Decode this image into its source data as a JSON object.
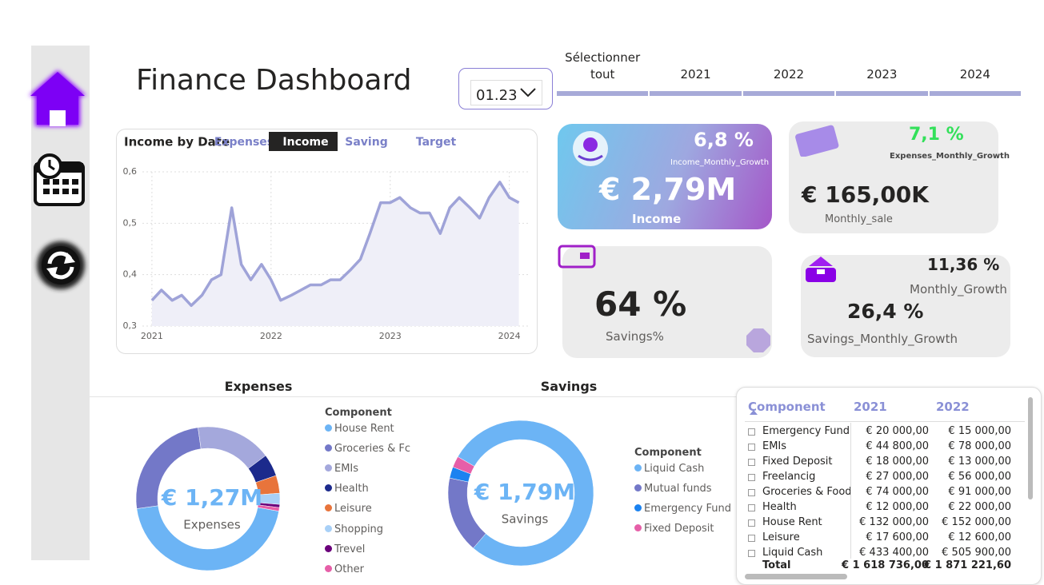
{
  "header": {
    "title": "Finance Dashboard",
    "date_dropdown": "01.23",
    "year_slicer": [
      "Sélectionner tout",
      "2021",
      "2022",
      "2023",
      "2024"
    ]
  },
  "kpis": {
    "income": {
      "growth": "6,8 %",
      "growth_label": "Income_Monthly_Growth",
      "value": "€ 2,79M",
      "label": "Income"
    },
    "expenses": {
      "growth": "7,1 %",
      "growth_label": "Expenses_Monthly_Growth",
      "value": "€ 165,00K",
      "label": "Monthly_sale"
    },
    "savings": {
      "value": "64 %",
      "label": "Savings%"
    },
    "savings_growth": {
      "growth": "11,36 %",
      "growth_label": "Monthly_Growth",
      "value": "26,4 %",
      "label": "Savings_Monthly_Growth"
    }
  },
  "chart_data": [
    {
      "type": "line",
      "title": "Income by Date",
      "tabs": [
        "Expenses",
        "Income",
        "Saving",
        "Target"
      ],
      "active_tab": 1,
      "x": [
        2021,
        2021.08,
        2021.17,
        2021.25,
        2021.33,
        2021.42,
        2021.5,
        2021.58,
        2021.67,
        2021.75,
        2021.83,
        2021.92,
        2022,
        2022.08,
        2022.17,
        2022.25,
        2022.33,
        2022.42,
        2022.5,
        2022.58,
        2022.67,
        2022.75,
        2022.83,
        2022.92,
        2023,
        2023.08,
        2023.17,
        2023.25,
        2023.33,
        2023.42,
        2023.5,
        2023.58,
        2023.67,
        2023.75,
        2023.83,
        2023.92,
        2024,
        2024.08
      ],
      "values": [
        0.35,
        0.37,
        0.35,
        0.36,
        0.34,
        0.36,
        0.39,
        0.4,
        0.53,
        0.42,
        0.39,
        0.42,
        0.39,
        0.35,
        0.36,
        0.37,
        0.38,
        0.38,
        0.39,
        0.39,
        0.41,
        0.43,
        0.48,
        0.54,
        0.54,
        0.55,
        0.53,
        0.52,
        0.52,
        0.48,
        0.53,
        0.55,
        0.53,
        0.51,
        0.55,
        0.58,
        0.55,
        0.54
      ],
      "color": "#9fa3d8",
      "area_color": "#efeff8",
      "xlim": [
        2020.92,
        2024.17
      ],
      "xticks": [
        2021,
        2022,
        2023,
        2024
      ],
      "ylim": [
        0.3,
        0.6
      ],
      "yticks": [
        {
          "value": 0.3,
          "label": "0,3"
        },
        {
          "value": 0.4,
          "label": "0,4"
        },
        {
          "value": 0.5,
          "label": "0,5"
        },
        {
          "value": 0.6,
          "label": "0,6"
        }
      ],
      "grid": true
    },
    {
      "type": "donut",
      "title": "Expenses",
      "center_value": "€ 1,27M",
      "center_label": "Expenses",
      "legend_title": "Component",
      "categories": [
        "House Rent",
        "Groceries & Fc",
        "EMIs",
        "Health",
        "Leisure",
        "Shopping",
        "Trevel",
        "Other"
      ],
      "values": [
        45,
        25,
        17,
        5,
        4,
        2.5,
        0.7,
        0.8
      ],
      "colors": [
        "#6cb4f5",
        "#7378c8",
        "#a4a8dc",
        "#1c2a8c",
        "#e8743b",
        "#a8d0f7",
        "#6b007b",
        "#e65fa8"
      ]
    },
    {
      "type": "donut",
      "title": "Savings",
      "center_value": "€ 1,79M",
      "center_label": "Savings",
      "legend_title": "Component",
      "categories": [
        "Liquid Cash",
        "Mutual funds",
        "Emergency Fund",
        "Fixed Deposit"
      ],
      "values": [
        78,
        17,
        2.5,
        2.5
      ],
      "colors": [
        "#6cb4f5",
        "#7378c8",
        "#1b82f0",
        "#e65fa8"
      ]
    }
  ],
  "table": {
    "columns": [
      "Component",
      "2021",
      "2022"
    ],
    "rows": [
      [
        "Emergency Fund",
        "€ 20 000,00",
        "€ 15 000,00"
      ],
      [
        "EMIs",
        "€ 44 800,00",
        "€ 78 000,00"
      ],
      [
        "Fixed Deposit",
        "€ 18 000,00",
        "€ 13 000,00"
      ],
      [
        "Freelancig",
        "€ 27 000,00",
        "€ 56 000,00"
      ],
      [
        "Groceries & Food",
        "€ 74 000,00",
        "€ 91 000,00"
      ],
      [
        "Health",
        "€ 12 000,00",
        "€ 22 000,00"
      ],
      [
        "House Rent",
        "€ 132 000,00",
        "€ 152 000,00"
      ],
      [
        "Leisure",
        "€ 17 600,00",
        "€ 12 600,00"
      ],
      [
        "Liquid Cash",
        "€ 433 400,00",
        "€ 505 900,00"
      ]
    ],
    "total": [
      "Total",
      "€ 1 618 736,00",
      "€ 1 871 221,60"
    ]
  }
}
